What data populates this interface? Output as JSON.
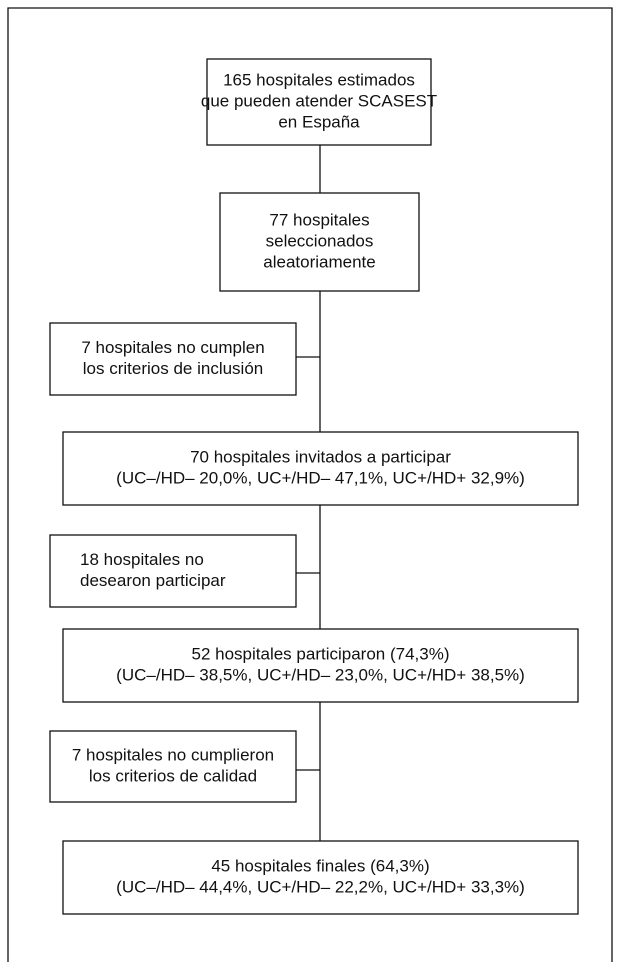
{
  "nodes": [
    {
      "lines": [
        "165 hospitales estimados",
        "que pueden atender SCASEST",
        "en España"
      ]
    },
    {
      "lines": [
        "77 hospitales",
        "seleccionados",
        "aleatoriamente"
      ]
    },
    {
      "lines": [
        "7 hospitales no cumplen",
        "los criterios de inclusión"
      ]
    },
    {
      "lines": [
        "70 hospitales invitados a participar",
        "(UC–/HD– 20,0%, UC+/HD– 47,1%, UC+/HD+ 32,9%)"
      ]
    },
    {
      "lines": [
        "18 hospitales no",
        "desearon participar"
      ]
    },
    {
      "lines": [
        "52 hospitales participaron (74,3%)",
        "(UC–/HD– 38,5%, UC+/HD– 23,0%, UC+/HD+ 38,5%)"
      ]
    },
    {
      "lines": [
        "7 hospitales no cumplieron",
        "los criterios de calidad"
      ]
    },
    {
      "lines": [
        "45 hospitales finales (64,3%)",
        "(UC–/HD– 44,4%, UC+/HD– 22,2%, UC+/HD+ 33,3%)"
      ]
    }
  ]
}
